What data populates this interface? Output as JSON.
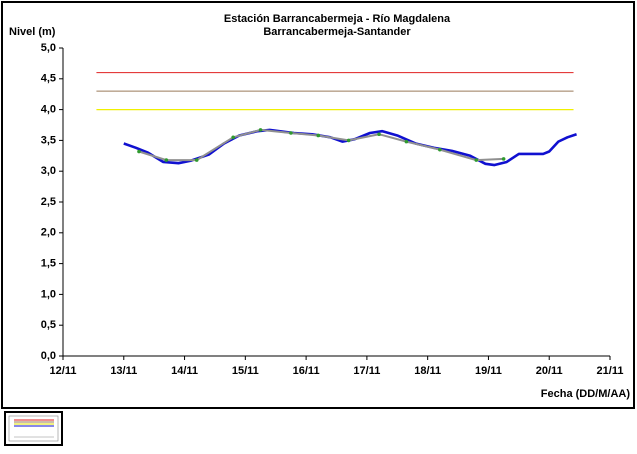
{
  "chart_data": {
    "type": "line",
    "title": "Estación Barrancabermeja - Río Magdalena",
    "subtitle": "Barrancabermeja-Santander",
    "y_label": "Nivel (m)",
    "x_label": "Fecha (DD/M/AA)",
    "xlim": [
      12,
      21
    ],
    "xticks": [
      {
        "value": 12,
        "label": "12/11"
      },
      {
        "value": 13,
        "label": "13/11"
      },
      {
        "value": 14,
        "label": "14/11"
      },
      {
        "value": 15,
        "label": "15/11"
      },
      {
        "value": 16,
        "label": "16/11"
      },
      {
        "value": 17,
        "label": "17/11"
      },
      {
        "value": 18,
        "label": "18/11"
      },
      {
        "value": 19,
        "label": "19/11"
      },
      {
        "value": 20,
        "label": "20/11"
      },
      {
        "value": 21,
        "label": "21/11"
      }
    ],
    "ylim": [
      0,
      5
    ],
    "yticks": [
      {
        "value": 0,
        "label": "0,0"
      },
      {
        "value": 0.5,
        "label": "0,5"
      },
      {
        "value": 1,
        "label": "1,0"
      },
      {
        "value": 1.5,
        "label": "1,5"
      },
      {
        "value": 2,
        "label": "2,0"
      },
      {
        "value": 2.5,
        "label": "2,5"
      },
      {
        "value": 3,
        "label": "3,0"
      },
      {
        "value": 3.5,
        "label": "3,5"
      },
      {
        "value": 4,
        "label": "4,0"
      },
      {
        "value": 4.5,
        "label": "4,5"
      },
      {
        "value": 5,
        "label": "5,0"
      }
    ],
    "grid": false,
    "series": [
      {
        "color": "#e02020",
        "width": 1,
        "x": [
          12.55,
          20.4
        ],
        "values": [
          4.6,
          4.6
        ]
      },
      {
        "color": "#9a7a5a",
        "width": 1,
        "x": [
          12.55,
          20.4
        ],
        "values": [
          4.3,
          4.3
        ]
      },
      {
        "color": "#f0f000",
        "width": 1.2,
        "x": [
          12.55,
          20.4
        ],
        "values": [
          4.0,
          4.0
        ]
      },
      {
        "color": "#1010d0",
        "width": 2.6,
        "x": [
          13.0,
          13.2,
          13.4,
          13.65,
          13.9,
          14.1,
          14.4,
          14.65,
          14.9,
          15.2,
          15.4,
          15.8,
          16.1,
          16.4,
          16.6,
          16.8,
          17.05,
          17.25,
          17.5,
          17.8,
          18.1,
          18.4,
          18.7,
          18.95,
          19.1,
          19.3,
          19.5,
          19.7,
          19.9,
          20.0,
          20.15,
          20.3,
          20.45
        ],
        "values": [
          3.45,
          3.38,
          3.3,
          3.15,
          3.13,
          3.17,
          3.27,
          3.45,
          3.58,
          3.65,
          3.67,
          3.62,
          3.6,
          3.55,
          3.48,
          3.52,
          3.62,
          3.65,
          3.58,
          3.45,
          3.38,
          3.33,
          3.25,
          3.12,
          3.1,
          3.15,
          3.28,
          3.28,
          3.28,
          3.32,
          3.48,
          3.55,
          3.6
        ]
      },
      {
        "color": "#909090",
        "width": 2,
        "marker_color": "#2f9a2f",
        "x": [
          13.25,
          13.7,
          14.2,
          14.8,
          15.25,
          15.75,
          16.2,
          16.7,
          17.2,
          17.65,
          18.2,
          18.8,
          19.25
        ],
        "values": [
          3.32,
          3.18,
          3.18,
          3.55,
          3.67,
          3.62,
          3.58,
          3.5,
          3.6,
          3.48,
          3.35,
          3.18,
          3.2
        ]
      }
    ]
  }
}
